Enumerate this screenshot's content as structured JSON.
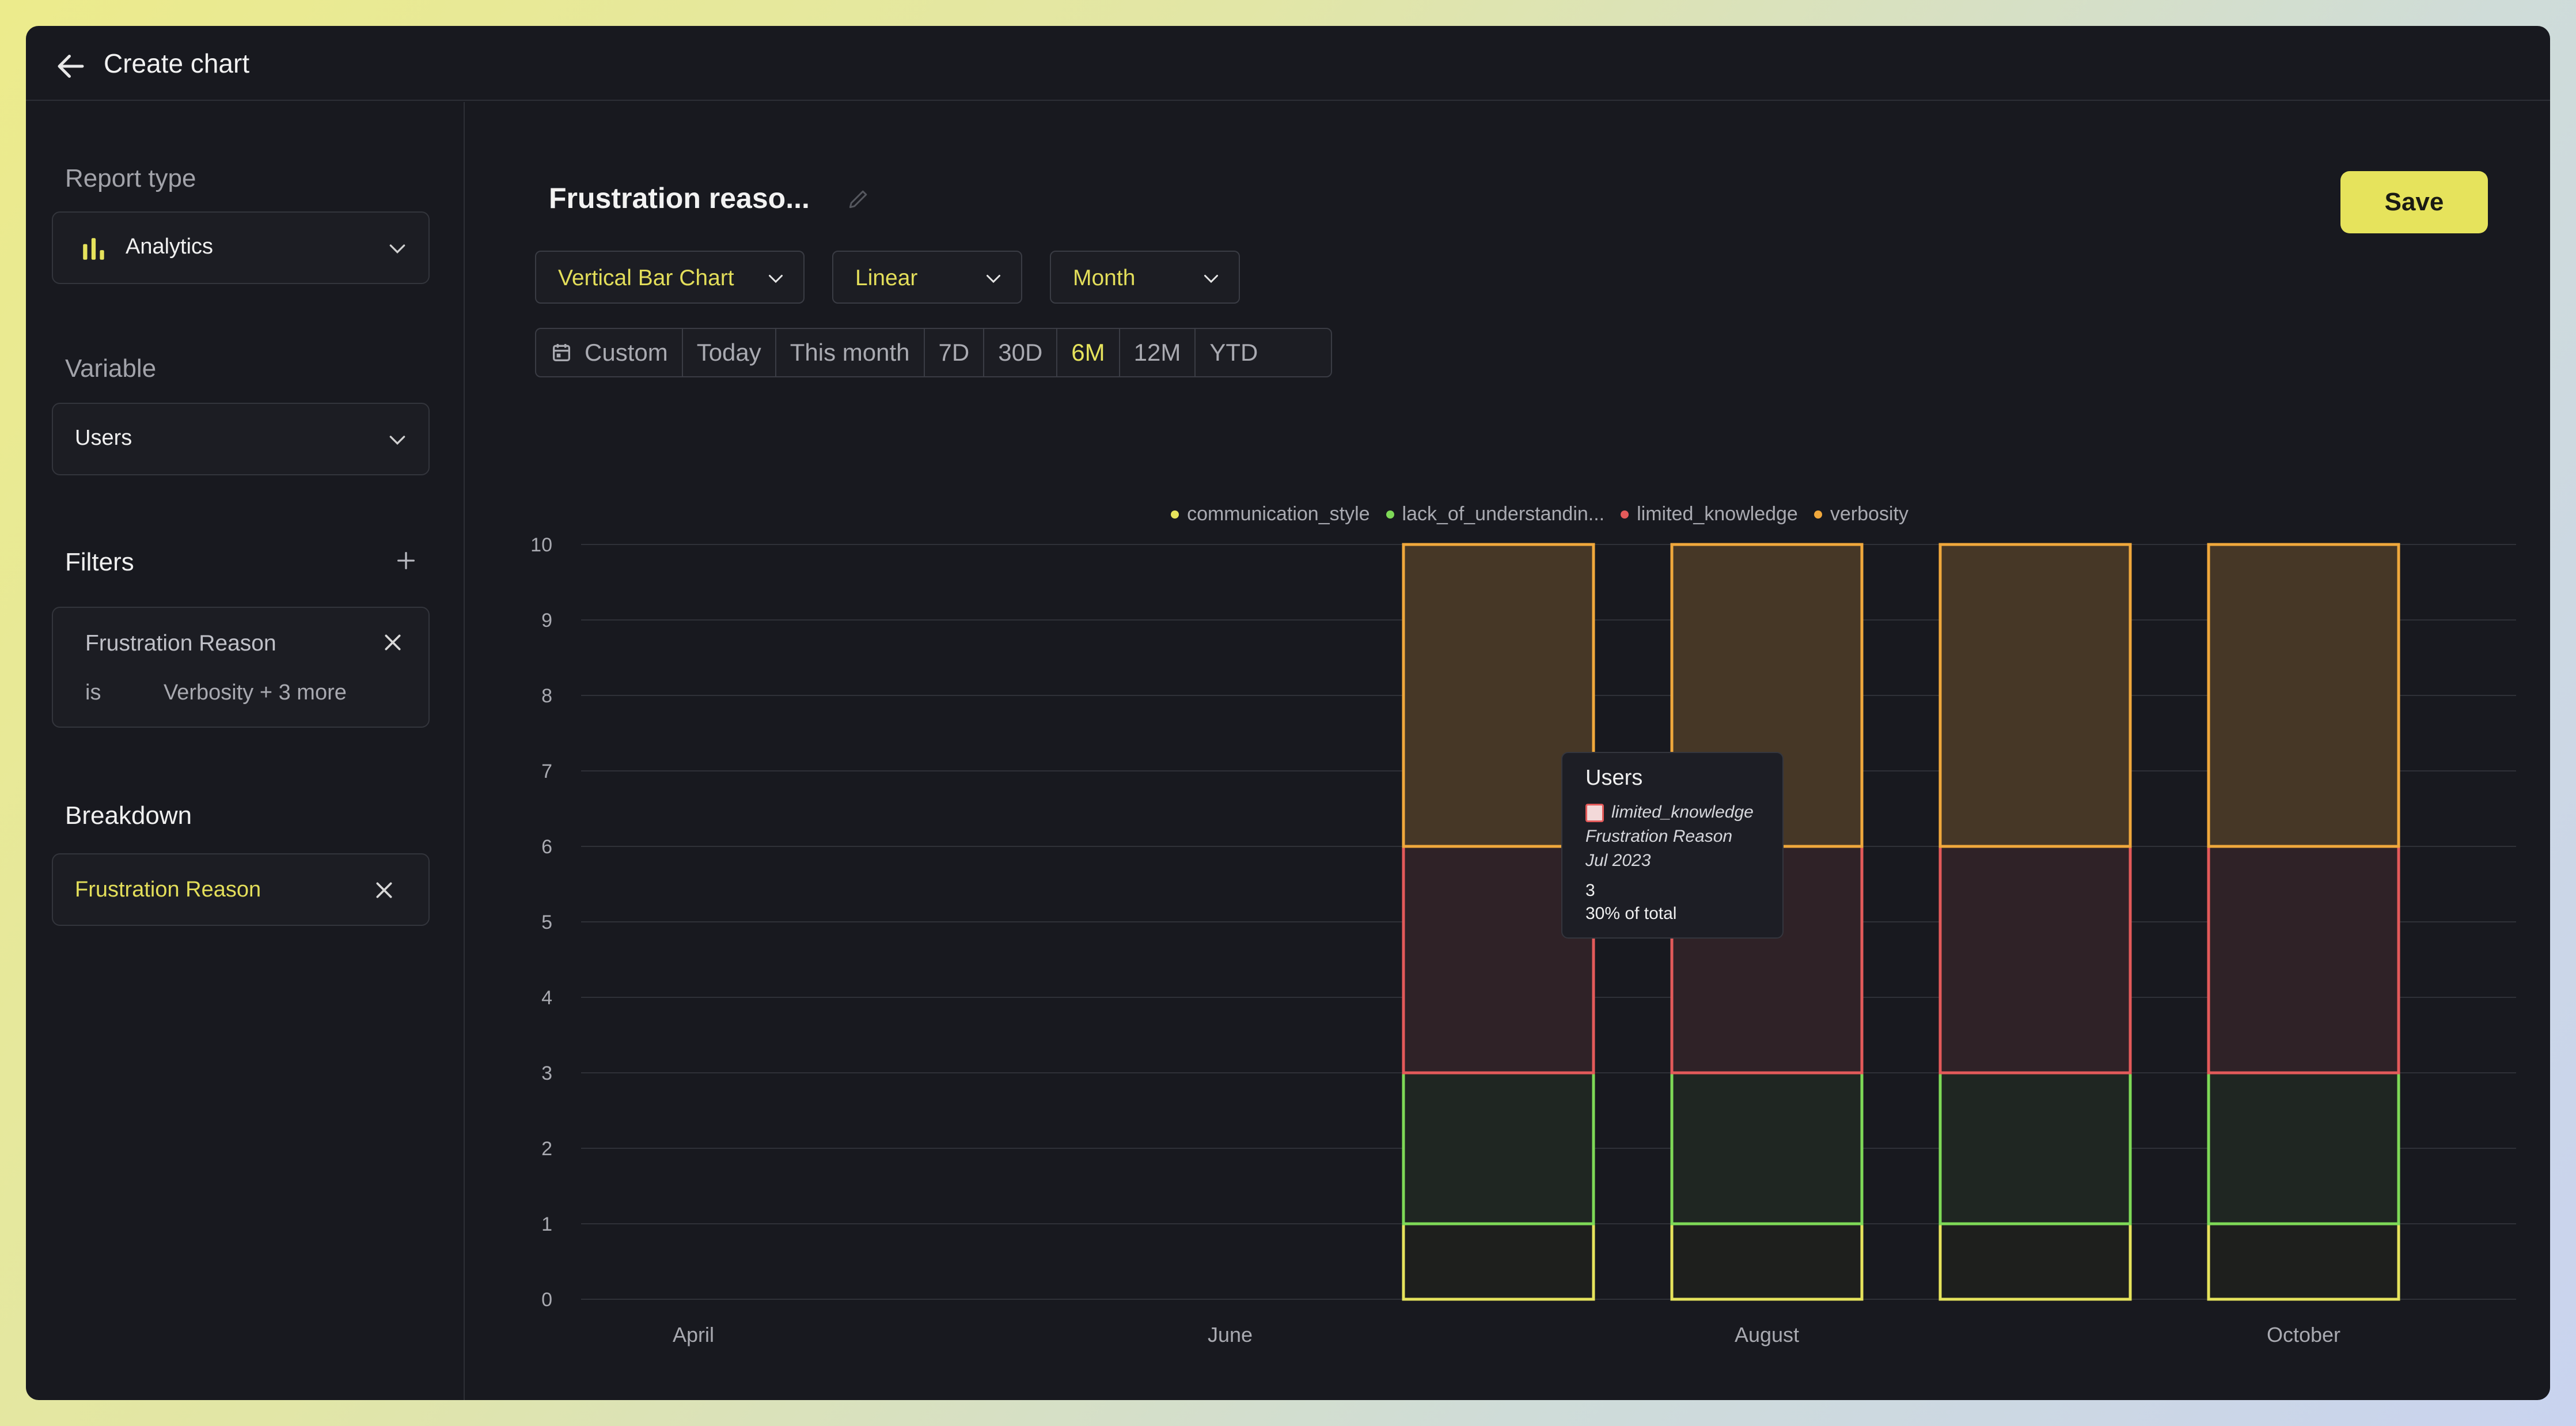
{
  "topbar": {
    "title": "Create chart",
    "back_icon": "arrow-left-icon"
  },
  "sidebar": {
    "report_type": {
      "label": "Report type",
      "value": "Analytics",
      "icon": "bar-chart-icon"
    },
    "variable": {
      "label": "Variable",
      "value": "Users"
    },
    "filters": {
      "label": "Filters",
      "add_icon": "plus-icon",
      "items": [
        {
          "name": "Frustration Reason",
          "operator": "is",
          "value": "Verbosity + 3 more"
        }
      ]
    },
    "breakdown": {
      "label": "Breakdown",
      "value": "Frustration Reason"
    }
  },
  "main": {
    "title": "Frustration reaso...",
    "save_label": "Save",
    "chart_type": "Vertical Bar Chart",
    "scale": "Linear",
    "interval": "Month",
    "ranges": [
      "Custom",
      "Today",
      "This month",
      "7D",
      "30D",
      "6M",
      "12M",
      "YTD"
    ],
    "active_range": "6M"
  },
  "colors": {
    "accent": "#e6e35c",
    "communication_style": "#e6e35c",
    "lack_of_understanding": "#7ed957",
    "limited_knowledge": "#e35a5a",
    "verbosity": "#f0a83c"
  },
  "tooltip": {
    "title": "Users",
    "series": "limited_knowledge",
    "dimension": "Frustration Reason",
    "date": "Jul 2023",
    "value": "3",
    "share": "30% of total"
  },
  "chart_data": {
    "type": "bar",
    "stacked": true,
    "legend": [
      "communication_style",
      "lack_of_understandin...",
      "limited_knowledge",
      "verbosity"
    ],
    "legend_position": "top-center",
    "x_tick_labels": [
      "April",
      "June",
      "August",
      "October"
    ],
    "categories": [
      "Apr 2023",
      "May 2023",
      "Jun 2023",
      "Jul 2023",
      "Aug 2023",
      "Sep 2023",
      "Oct 2023"
    ],
    "series": [
      {
        "name": "communication_style",
        "values": [
          0,
          0,
          0,
          1,
          1,
          1,
          1
        ]
      },
      {
        "name": "lack_of_understandin...",
        "values": [
          0,
          0,
          0,
          2,
          2,
          2,
          2
        ]
      },
      {
        "name": "limited_knowledge",
        "values": [
          0,
          0,
          0,
          3,
          3,
          3,
          3
        ]
      },
      {
        "name": "verbosity",
        "values": [
          0,
          0,
          0,
          4,
          4,
          4,
          4
        ]
      }
    ],
    "ylim": [
      0,
      10
    ],
    "yticks": [
      0,
      1,
      2,
      3,
      4,
      5,
      6,
      7,
      8,
      9,
      10
    ],
    "grid": true
  }
}
